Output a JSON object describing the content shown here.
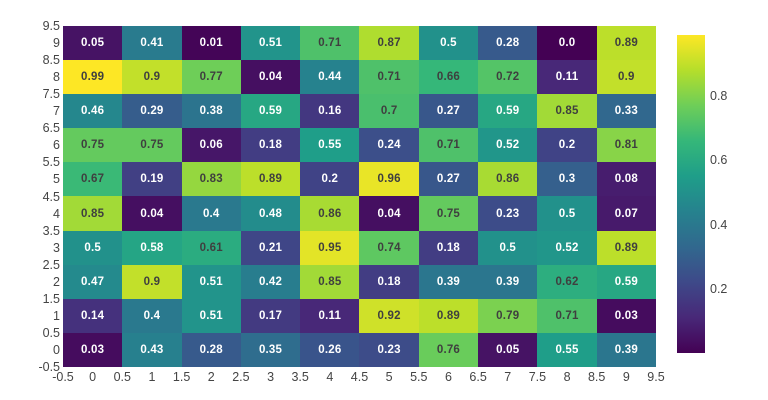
{
  "figure": {
    "background_color": "#ffffff",
    "axis_tick_color": "#444444"
  },
  "chart_data": {
    "type": "heatmap",
    "title": "",
    "xlabel": "",
    "ylabel": "",
    "colorscale_name": "viridis",
    "vmin": 0,
    "vmax": 0.99,
    "grid": "off",
    "x_range": [
      -0.5,
      9.5
    ],
    "y_range": [
      -0.5,
      9.5
    ],
    "x_tick_labels": [
      "-0.5",
      "0",
      "0.5",
      "1",
      "1.5",
      "2",
      "2.5",
      "3",
      "3.5",
      "4",
      "4.5",
      "5",
      "5.5",
      "6",
      "6.5",
      "7",
      "7.5",
      "8",
      "8.5",
      "9",
      "9.5"
    ],
    "y_tick_labels": [
      "9.5",
      "9",
      "8.5",
      "8",
      "7.5",
      "7",
      "6.5",
      "6",
      "5.5",
      "5",
      "4.5",
      "4",
      "3.5",
      "3",
      "2.5",
      "2",
      "1.5",
      "1",
      "0.5",
      "0",
      "-0.5"
    ],
    "rows_top_to_bottom": [
      9,
      8,
      7,
      6,
      5,
      4,
      3,
      2,
      1,
      0
    ],
    "cell_labels": [
      [
        "0.05",
        "0.41",
        "0.01",
        "0.51",
        "0.71",
        "0.87",
        "0.5",
        "0.28",
        "0.0",
        "0.89"
      ],
      [
        "0.99",
        "0.9",
        "0.77",
        "0.04",
        "0.44",
        "0.71",
        "0.66",
        "0.72",
        "0.11",
        "0.9"
      ],
      [
        "0.46",
        "0.29",
        "0.38",
        "0.59",
        "0.16",
        "0.7",
        "0.27",
        "0.59",
        "0.85",
        "0.33"
      ],
      [
        "0.75",
        "0.75",
        "0.06",
        "0.18",
        "0.55",
        "0.24",
        "0.71",
        "0.52",
        "0.2",
        "0.81"
      ],
      [
        "0.67",
        "0.19",
        "0.83",
        "0.89",
        "0.2",
        "0.96",
        "0.27",
        "0.86",
        "0.3",
        "0.08"
      ],
      [
        "0.85",
        "0.04",
        "0.4",
        "0.48",
        "0.86",
        "0.04",
        "0.75",
        "0.23",
        "0.5",
        "0.07"
      ],
      [
        "0.5",
        "0.58",
        "0.61",
        "0.21",
        "0.95",
        "0.74",
        "0.18",
        "0.5",
        "0.52",
        "0.89"
      ],
      [
        "0.47",
        "0.9",
        "0.51",
        "0.42",
        "0.85",
        "0.18",
        "0.39",
        "0.39",
        "0.62",
        "0.59"
      ],
      [
        "0.14",
        "0.4",
        "0.51",
        "0.17",
        "0.11",
        "0.92",
        "0.89",
        "0.79",
        "0.71",
        "0.03"
      ],
      [
        "0.03",
        "0.43",
        "0.28",
        "0.35",
        "0.26",
        "0.23",
        "0.76",
        "0.05",
        "0.55",
        "0.39"
      ]
    ],
    "viridis_stops": [
      "#440154",
      "#482878",
      "#3e4989",
      "#31688e",
      "#26828e",
      "#1f9e89",
      "#35b779",
      "#6ece58",
      "#b5de2b",
      "#fde725"
    ],
    "text_colors": {
      "light_text": "#ffffff",
      "dark_text": "#3f3f3f",
      "dark_text_threshold": 0.6
    },
    "colorbar": {
      "tick_labels": [
        "0.8",
        "0.6",
        "0.4",
        "0.2"
      ],
      "tick_values": [
        0.8,
        0.6,
        0.4,
        0.2
      ],
      "bottom_color": "#440154",
      "top_color": "#fde725",
      "legend_position": "right"
    }
  }
}
